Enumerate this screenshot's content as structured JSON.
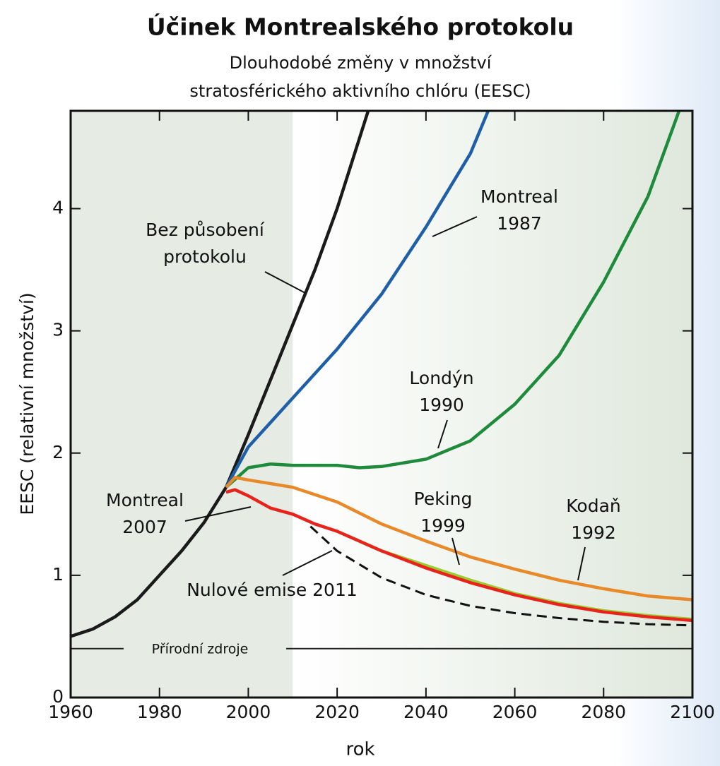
{
  "chart_data": {
    "type": "line",
    "title": "Účinek Montrealského protokolu",
    "subtitle": [
      "Dlouhodobé změny v množství",
      "stratosférického aktivního chlóru (EESC)"
    ],
    "xlabel": "rok",
    "ylabel": "EESC (relativní množství)",
    "xlim": [
      1960,
      2100
    ],
    "ylim": [
      0,
      4.8
    ],
    "xticks": [
      1960,
      1980,
      2000,
      2020,
      2040,
      2060,
      2080,
      2100
    ],
    "yticks": [
      0,
      1,
      2,
      3,
      4
    ],
    "baseline": {
      "value": 0.4,
      "label": "Přírodní zdroje"
    },
    "shaded_until": 2010,
    "series": [
      {
        "color": "#1a1a1a",
        "x": [
          1960,
          1965,
          1970,
          1975,
          1980,
          1985,
          1990,
          1995,
          2000,
          2005,
          2010,
          2015,
          2020,
          2027
        ],
        "values": [
          0.5,
          0.56,
          0.66,
          0.8,
          1.0,
          1.2,
          1.43,
          1.72,
          2.15,
          2.6,
          3.05,
          3.5,
          4.0,
          4.8
        ]
      },
      {
        "color": "#1f5fa8",
        "x": [
          1995,
          2000,
          2010,
          2020,
          2030,
          2040,
          2050,
          2054
        ],
        "values": [
          1.72,
          2.05,
          2.45,
          2.85,
          3.3,
          3.85,
          4.45,
          4.8
        ]
      },
      {
        "color": "#1e8a3c",
        "x": [
          1995,
          2000,
          2005,
          2010,
          2020,
          2025,
          2030,
          2040,
          2050,
          2060,
          2070,
          2080,
          2090,
          2097
        ],
        "values": [
          1.72,
          1.88,
          1.91,
          1.9,
          1.9,
          1.88,
          1.89,
          1.95,
          2.1,
          2.4,
          2.8,
          3.4,
          4.1,
          4.8
        ]
      },
      {
        "color": "#e8892a",
        "x": [
          1995,
          1997,
          2000,
          2010,
          2020,
          2030,
          2040,
          2050,
          2060,
          2070,
          2080,
          2090,
          2100
        ],
        "values": [
          1.72,
          1.8,
          1.78,
          1.72,
          1.6,
          1.42,
          1.28,
          1.15,
          1.05,
          0.96,
          0.89,
          0.83,
          0.8
        ]
      },
      {
        "color": "#9acd32",
        "x": [
          2020,
          2030,
          2040,
          2050,
          2060,
          2070,
          2080,
          2090,
          2100
        ],
        "values": [
          1.36,
          1.2,
          1.08,
          0.96,
          0.85,
          0.77,
          0.71,
          0.67,
          0.64
        ]
      },
      {
        "color": "#e8231c",
        "x": [
          1995,
          1997,
          2000,
          2005,
          2010,
          2015,
          2020,
          2030,
          2040,
          2050,
          2060,
          2070,
          2080,
          2090,
          2100
        ],
        "values": [
          1.68,
          1.7,
          1.65,
          1.55,
          1.5,
          1.42,
          1.36,
          1.2,
          1.06,
          0.94,
          0.84,
          0.76,
          0.7,
          0.66,
          0.63
        ]
      },
      {
        "color": "#111111",
        "dash": true,
        "x": [
          2014,
          2020,
          2030,
          2040,
          2050,
          2060,
          2070,
          2080,
          2090,
          2100
        ],
        "values": [
          1.4,
          1.2,
          0.98,
          0.84,
          0.75,
          0.69,
          0.65,
          0.62,
          0.6,
          0.59
        ]
      }
    ],
    "annotations": [
      {
        "lines": [
          "Bez působení",
          "protokolu"
        ]
      },
      {
        "lines": [
          "Montreal",
          "1987"
        ]
      },
      {
        "lines": [
          "Londýn",
          "1990"
        ]
      },
      {
        "lines": [
          "Montreal",
          "2007"
        ]
      },
      {
        "lines": [
          "Peking",
          "1999"
        ]
      },
      {
        "lines": [
          "Kodaň",
          "1992"
        ]
      },
      {
        "lines": [
          "Nulové emise 2011"
        ]
      }
    ]
  }
}
